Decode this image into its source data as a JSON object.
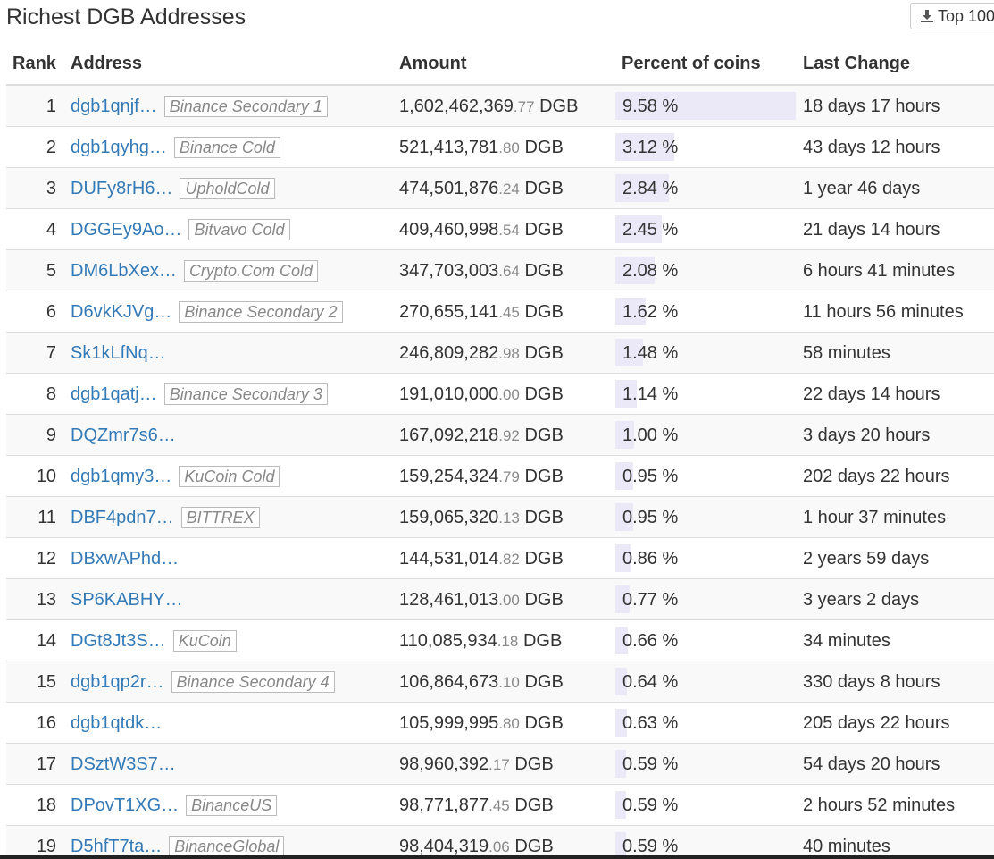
{
  "header": {
    "title": "Richest DGB Addresses",
    "download_label": "Top 100",
    "download_icon": "download-icon"
  },
  "table": {
    "columns": {
      "rank": "Rank",
      "address": "Address",
      "amount": "Amount",
      "percent": "Percent of coins",
      "last_change": "Last Change"
    },
    "max_percent": 9.58,
    "rows": [
      {
        "rank": "1",
        "address": "dgb1qnjf…",
        "tag": "Binance Secondary 1",
        "amount_int": "1,602,462,369",
        "amount_dec": ".77",
        "unit": "DGB",
        "percent_text": "9.58 %",
        "percent": 9.58,
        "last_change": "18 days 17 hours"
      },
      {
        "rank": "2",
        "address": "dgb1qyhg…",
        "tag": "Binance Cold",
        "amount_int": "521,413,781",
        "amount_dec": ".80",
        "unit": "DGB",
        "percent_text": "3.12 %",
        "percent": 3.12,
        "last_change": "43 days 12 hours"
      },
      {
        "rank": "3",
        "address": "DUFy8rH6…",
        "tag": "UpholdCold",
        "amount_int": "474,501,876",
        "amount_dec": ".24",
        "unit": "DGB",
        "percent_text": "2.84 %",
        "percent": 2.84,
        "last_change": "1 year 46 days"
      },
      {
        "rank": "4",
        "address": "DGGEy9Ao…",
        "tag": "Bitvavo Cold",
        "amount_int": "409,460,998",
        "amount_dec": ".54",
        "unit": "DGB",
        "percent_text": "2.45 %",
        "percent": 2.45,
        "last_change": "21 days 14 hours"
      },
      {
        "rank": "5",
        "address": "DM6LbXex…",
        "tag": "Crypto.Com Cold",
        "amount_int": "347,703,003",
        "amount_dec": ".64",
        "unit": "DGB",
        "percent_text": "2.08 %",
        "percent": 2.08,
        "last_change": "6 hours 41 minutes"
      },
      {
        "rank": "6",
        "address": "D6vkKJVg…",
        "tag": "Binance Secondary 2",
        "amount_int": "270,655,141",
        "amount_dec": ".45",
        "unit": "DGB",
        "percent_text": "1.62 %",
        "percent": 1.62,
        "last_change": "11 hours 56 minutes"
      },
      {
        "rank": "7",
        "address": "Sk1kLfNq…",
        "tag": "",
        "amount_int": "246,809,282",
        "amount_dec": ".98",
        "unit": "DGB",
        "percent_text": "1.48 %",
        "percent": 1.48,
        "last_change": "58 minutes"
      },
      {
        "rank": "8",
        "address": "dgb1qatj…",
        "tag": "Binance Secondary 3",
        "amount_int": "191,010,000",
        "amount_dec": ".00",
        "unit": "DGB",
        "percent_text": "1.14 %",
        "percent": 1.14,
        "last_change": "22 days 14 hours"
      },
      {
        "rank": "9",
        "address": "DQZmr7s6…",
        "tag": "",
        "amount_int": "167,092,218",
        "amount_dec": ".92",
        "unit": "DGB",
        "percent_text": "1.00 %",
        "percent": 1.0,
        "last_change": "3 days 20 hours"
      },
      {
        "rank": "10",
        "address": "dgb1qmy3…",
        "tag": "KuCoin Cold",
        "amount_int": "159,254,324",
        "amount_dec": ".79",
        "unit": "DGB",
        "percent_text": "0.95 %",
        "percent": 0.95,
        "last_change": "202 days 22 hours"
      },
      {
        "rank": "11",
        "address": "DBF4pdn7…",
        "tag": "BITTREX",
        "amount_int": "159,065,320",
        "amount_dec": ".13",
        "unit": "DGB",
        "percent_text": "0.95 %",
        "percent": 0.95,
        "last_change": "1 hour 37 minutes"
      },
      {
        "rank": "12",
        "address": "DBxwAPhd…",
        "tag": "",
        "amount_int": "144,531,014",
        "amount_dec": ".82",
        "unit": "DGB",
        "percent_text": "0.86 %",
        "percent": 0.86,
        "last_change": "2 years 59 days"
      },
      {
        "rank": "13",
        "address": "SP6KABHY…",
        "tag": "",
        "amount_int": "128,461,013",
        "amount_dec": ".00",
        "unit": "DGB",
        "percent_text": "0.77 %",
        "percent": 0.77,
        "last_change": "3 years 2 days"
      },
      {
        "rank": "14",
        "address": "DGt8Jt3S…",
        "tag": "KuCoin",
        "amount_int": "110,085,934",
        "amount_dec": ".18",
        "unit": "DGB",
        "percent_text": "0.66 %",
        "percent": 0.66,
        "last_change": "34 minutes"
      },
      {
        "rank": "15",
        "address": "dgb1qp2r…",
        "tag": "Binance Secondary 4",
        "amount_int": "106,864,673",
        "amount_dec": ".10",
        "unit": "DGB",
        "percent_text": "0.64 %",
        "percent": 0.64,
        "last_change": "330 days 8 hours"
      },
      {
        "rank": "16",
        "address": "dgb1qtdk…",
        "tag": "",
        "amount_int": "105,999,995",
        "amount_dec": ".80",
        "unit": "DGB",
        "percent_text": "0.63 %",
        "percent": 0.63,
        "last_change": "205 days 22 hours"
      },
      {
        "rank": "17",
        "address": "DSztW3S7…",
        "tag": "",
        "amount_int": "98,960,392",
        "amount_dec": ".17",
        "unit": "DGB",
        "percent_text": "0.59 %",
        "percent": 0.59,
        "last_change": "54 days 20 hours"
      },
      {
        "rank": "18",
        "address": "DPovT1XG…",
        "tag": "BinanceUS",
        "amount_int": "98,771,877",
        "amount_dec": ".45",
        "unit": "DGB",
        "percent_text": "0.59 %",
        "percent": 0.59,
        "last_change": "2 hours 52 minutes"
      },
      {
        "rank": "19",
        "address": "D5hfT7ta…",
        "tag": "BinanceGlobal",
        "amount_int": "98,404,319",
        "amount_dec": ".06",
        "unit": "DGB",
        "percent_text": "0.59 %",
        "percent": 0.59,
        "last_change": "40 minutes"
      }
    ]
  }
}
